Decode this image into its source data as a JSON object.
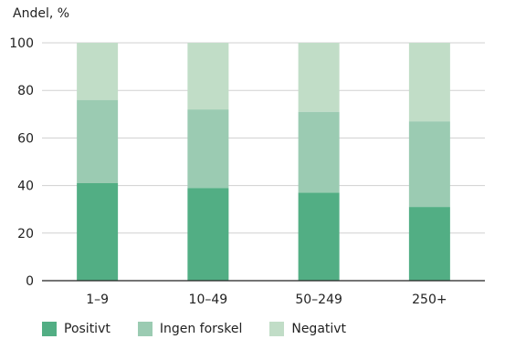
{
  "chart_data": {
    "type": "bar",
    "stacked": true,
    "ylabel": "Andel, %",
    "ylim": [
      0,
      100
    ],
    "yticks": [
      0,
      20,
      40,
      60,
      80,
      100
    ],
    "categories": [
      "1–9",
      "10–49",
      "50–249",
      "250+"
    ],
    "series": [
      {
        "name": "Positivt",
        "values": [
          41,
          39,
          37,
          31
        ],
        "color": "#52ae84"
      },
      {
        "name": "Ingen forskel",
        "values": [
          35,
          33,
          34,
          36
        ],
        "color": "#9bcbb2"
      },
      {
        "name": "Negativt",
        "values": [
          24,
          28,
          29,
          33
        ],
        "color": "#c1ddc7"
      }
    ],
    "grid": true,
    "legend_position": "bottom-left"
  }
}
